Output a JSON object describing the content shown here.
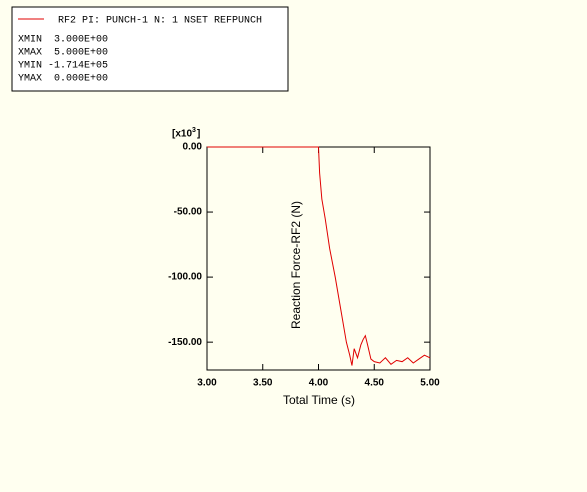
{
  "chart_data": {
    "type": "line",
    "legend_lines": [
      "XMIN  3.000E+00",
      "XMAX  5.000E+00",
      "YMIN -1.714E+05",
      "YMAX  0.000E+00"
    ],
    "x_label": "Total Time (s)",
    "y_label": "Reaction Force-RF2 (N)",
    "y_multiplier_base": "[x10",
    "y_multiplier_exp": "3",
    "y_multiplier_close": "]",
    "xlim": [
      3,
      5
    ],
    "ylim": [
      -171.4,
      0
    ],
    "xticks": [
      {
        "value": 3,
        "label": "3.00"
      },
      {
        "value": 3.5,
        "label": "3.50"
      },
      {
        "value": 4,
        "label": "4.00"
      },
      {
        "value": 4.5,
        "label": "4.50"
      },
      {
        "value": 5,
        "label": "5.00"
      }
    ],
    "yticks": [
      {
        "value": 0,
        "label": "0.00"
      },
      {
        "value": -50,
        "label": "-50.00"
      },
      {
        "value": -100,
        "label": "-100.00"
      },
      {
        "value": -150,
        "label": "-150.00"
      }
    ],
    "series": [
      {
        "name": "RF2 PI: PUNCH-1 N: 1 NSET REFPUNCH",
        "color": "#e00000",
        "x": [
          3.0,
          4.0,
          4.01,
          4.03,
          4.06,
          4.1,
          4.15,
          4.2,
          4.25,
          4.28,
          4.3,
          4.32,
          4.35,
          4.38,
          4.4,
          4.42,
          4.44,
          4.47,
          4.5,
          4.55,
          4.6,
          4.65,
          4.7,
          4.75,
          4.8,
          4.85,
          4.9,
          4.95,
          5.0
        ],
        "values": [
          0,
          0,
          -20,
          -40,
          -55,
          -78,
          -100,
          -125,
          -150,
          -160,
          -168,
          -155,
          -162,
          -152,
          -148,
          -145,
          -152,
          -163,
          -165,
          -166,
          -162,
          -167,
          -164,
          -165,
          -162,
          -166,
          -163,
          -160,
          -162
        ]
      }
    ]
  }
}
